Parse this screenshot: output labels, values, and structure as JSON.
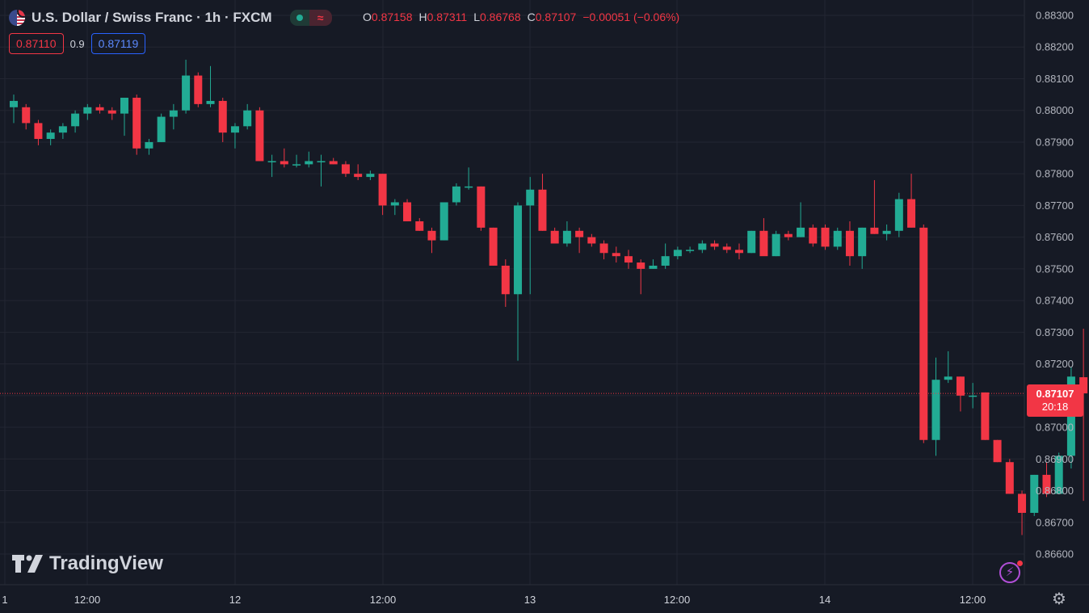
{
  "header": {
    "title": "U.S. Dollar / Swiss Franc · 1h · FXCM",
    "ohlc": {
      "o_label": "O",
      "o": "0.87158",
      "h_label": "H",
      "h": "0.87311",
      "l_label": "L",
      "l": "0.86768",
      "c_label": "C",
      "c": "0.87107",
      "change": "−0.00051 (−0.06%)"
    },
    "wave_symbol": "≈"
  },
  "quotes": {
    "sell": "0.87110",
    "spread": "0.9",
    "buy": "0.87119"
  },
  "last_price": {
    "value": "0.87107",
    "countdown": "20:18"
  },
  "brand": "TradingView",
  "icons": {
    "settings": "gear-icon",
    "alerts": "lightning-icon",
    "flag": "us-flag-icon"
  },
  "colors": {
    "up": "#22ab94",
    "down": "#f23645",
    "background": "#161a25",
    "grid": "#232632",
    "axis_text": "#b2b5be"
  },
  "chart_data": {
    "type": "candlestick",
    "ylim": [
      0.8659,
      0.8832
    ],
    "yticks": [
      "0.88300",
      "0.88200",
      "0.88100",
      "0.88000",
      "0.87900",
      "0.87800",
      "0.87700",
      "0.87600",
      "0.87500",
      "0.87400",
      "0.87300",
      "0.87200",
      "0.87100",
      "0.87000",
      "0.86900",
      "0.86800",
      "0.86700",
      "0.86600"
    ],
    "xticks": [
      "1",
      "12:00",
      "12",
      "12:00",
      "13",
      "12:00",
      "14",
      "12:00"
    ],
    "grid": true,
    "candles": [
      [
        0.8801,
        0.8805,
        0.8796,
        0.8803
      ],
      [
        0.8801,
        0.8802,
        0.8794,
        0.8796
      ],
      [
        0.8796,
        0.8797,
        0.8789,
        0.8791
      ],
      [
        0.8791,
        0.8794,
        0.8789,
        0.8793
      ],
      [
        0.8793,
        0.8796,
        0.8791,
        0.8795
      ],
      [
        0.8795,
        0.88,
        0.8793,
        0.8799
      ],
      [
        0.8799,
        0.8802,
        0.8797,
        0.8801
      ],
      [
        0.8801,
        0.8802,
        0.8799,
        0.88
      ],
      [
        0.88,
        0.8801,
        0.8797,
        0.8799
      ],
      [
        0.8799,
        0.8804,
        0.8792,
        0.8804
      ],
      [
        0.8804,
        0.8805,
        0.8786,
        0.8788
      ],
      [
        0.8788,
        0.8791,
        0.8786,
        0.879
      ],
      [
        0.879,
        0.8799,
        0.879,
        0.8798
      ],
      [
        0.8798,
        0.8802,
        0.8794,
        0.88
      ],
      [
        0.88,
        0.8816,
        0.8799,
        0.8811
      ],
      [
        0.8811,
        0.8812,
        0.8801,
        0.8802
      ],
      [
        0.8802,
        0.8814,
        0.8801,
        0.8803
      ],
      [
        0.8803,
        0.8804,
        0.879,
        0.8793
      ],
      [
        0.8793,
        0.8796,
        0.8788,
        0.8795
      ],
      [
        0.8795,
        0.8802,
        0.8794,
        0.88
      ],
      [
        0.88,
        0.8801,
        0.8784,
        0.8784
      ],
      [
        0.8784,
        0.8786,
        0.8779,
        0.8784
      ],
      [
        0.8784,
        0.8788,
        0.8782,
        0.8783
      ],
      [
        0.8783,
        0.8786,
        0.8782,
        0.8783
      ],
      [
        0.8783,
        0.8787,
        0.8782,
        0.8784
      ],
      [
        0.8784,
        0.8786,
        0.8776,
        0.8784
      ],
      [
        0.8784,
        0.8785,
        0.8783,
        0.8783
      ],
      [
        0.8783,
        0.8784,
        0.8779,
        0.878
      ],
      [
        0.878,
        0.8783,
        0.8778,
        0.8779
      ],
      [
        0.8779,
        0.8781,
        0.8778,
        0.878
      ],
      [
        0.878,
        0.878,
        0.8767,
        0.877
      ],
      [
        0.877,
        0.8772,
        0.8767,
        0.8771
      ],
      [
        0.8771,
        0.8772,
        0.8765,
        0.8765
      ],
      [
        0.8765,
        0.8766,
        0.8762,
        0.8762
      ],
      [
        0.8762,
        0.8763,
        0.8755,
        0.8759
      ],
      [
        0.8759,
        0.8771,
        0.8759,
        0.8771
      ],
      [
        0.8771,
        0.8777,
        0.877,
        0.8776
      ],
      [
        0.8776,
        0.8782,
        0.8775,
        0.8776
      ],
      [
        0.8776,
        0.8776,
        0.8762,
        0.8763
      ],
      [
        0.8763,
        0.8763,
        0.8751,
        0.8751
      ],
      [
        0.8751,
        0.8753,
        0.8738,
        0.8742
      ],
      [
        0.8742,
        0.8771,
        0.8721,
        0.877
      ],
      [
        0.877,
        0.8779,
        0.8742,
        0.8775
      ],
      [
        0.8775,
        0.878,
        0.8762,
        0.8762
      ],
      [
        0.8762,
        0.8763,
        0.8758,
        0.8758
      ],
      [
        0.8758,
        0.8765,
        0.8757,
        0.8762
      ],
      [
        0.8762,
        0.8763,
        0.8755,
        0.876
      ],
      [
        0.876,
        0.8761,
        0.8757,
        0.8758
      ],
      [
        0.8758,
        0.8759,
        0.8753,
        0.8755
      ],
      [
        0.8755,
        0.8757,
        0.8752,
        0.8754
      ],
      [
        0.8754,
        0.8756,
        0.875,
        0.8752
      ],
      [
        0.8752,
        0.8753,
        0.8742,
        0.875
      ],
      [
        0.875,
        0.8753,
        0.875,
        0.8751
      ],
      [
        0.8751,
        0.8758,
        0.875,
        0.8754
      ],
      [
        0.8754,
        0.8757,
        0.8753,
        0.8756
      ],
      [
        0.8756,
        0.8757,
        0.8755,
        0.8756
      ],
      [
        0.8756,
        0.8759,
        0.8755,
        0.8758
      ],
      [
        0.8758,
        0.8759,
        0.8756,
        0.8757
      ],
      [
        0.8757,
        0.8758,
        0.8755,
        0.8756
      ],
      [
        0.8756,
        0.8758,
        0.8753,
        0.8755
      ],
      [
        0.8755,
        0.8762,
        0.8755,
        0.8762
      ],
      [
        0.8762,
        0.8766,
        0.8755,
        0.8754
      ],
      [
        0.8754,
        0.8762,
        0.8754,
        0.8761
      ],
      [
        0.8761,
        0.8762,
        0.8759,
        0.876
      ],
      [
        0.876,
        0.8771,
        0.876,
        0.8763
      ],
      [
        0.8763,
        0.8764,
        0.8757,
        0.8758
      ],
      [
        0.8763,
        0.8764,
        0.8756,
        0.8757
      ],
      [
        0.8757,
        0.8763,
        0.8756,
        0.8762
      ],
      [
        0.8762,
        0.8765,
        0.8751,
        0.8754
      ],
      [
        0.8754,
        0.8763,
        0.875,
        0.8763
      ],
      [
        0.8763,
        0.8778,
        0.8761,
        0.8761
      ],
      [
        0.8761,
        0.8764,
        0.8759,
        0.8762
      ],
      [
        0.8762,
        0.8774,
        0.876,
        0.8772
      ],
      [
        0.8772,
        0.878,
        0.8763,
        0.8763
      ],
      [
        0.8763,
        0.8764,
        0.8695,
        0.8696
      ],
      [
        0.8696,
        0.8722,
        0.8691,
        0.8715
      ],
      [
        0.8715,
        0.8724,
        0.8714,
        0.8716
      ],
      [
        0.8716,
        0.8716,
        0.8705,
        0.871
      ],
      [
        0.871,
        0.8714,
        0.8706,
        0.871
      ],
      [
        0.8711,
        0.8711,
        0.8696,
        0.8696
      ],
      [
        0.8696,
        0.8696,
        0.8689,
        0.8689
      ],
      [
        0.8689,
        0.869,
        0.8679,
        0.8679
      ],
      [
        0.8679,
        0.868,
        0.8666,
        0.8673
      ],
      [
        0.8673,
        0.8685,
        0.8672,
        0.8685
      ],
      [
        0.8685,
        0.8689,
        0.8678,
        0.8679
      ],
      [
        0.8679,
        0.8692,
        0.8679,
        0.8691
      ],
      [
        0.8691,
        0.8719,
        0.8687,
        0.8716
      ],
      [
        0.87158,
        0.87311,
        0.86768,
        0.87107
      ]
    ]
  }
}
